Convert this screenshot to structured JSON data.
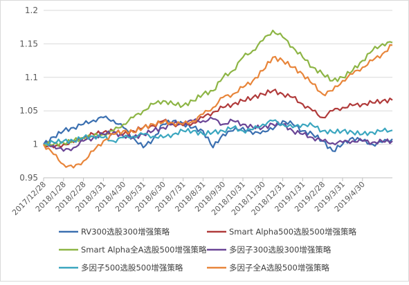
{
  "chart_data": {
    "type": "line",
    "title": "",
    "xlabel": "",
    "ylabel": "",
    "ylim": [
      0.95,
      1.2
    ],
    "y_ticks": [
      "0.95",
      "1",
      "1.05",
      "1.1",
      "1.15",
      "1.2"
    ],
    "x_tick_labels": [
      "2017/12/28",
      "2018/1/28",
      "2018/2/28",
      "2018/3/31",
      "2018/4/30",
      "2018/5/31",
      "2018/6/30",
      "2018/7/31",
      "2018/8/31",
      "2018/9/30",
      "2018/10/31",
      "2018/11/30",
      "2018/12/31",
      "2019/1/31",
      "2019/2/28",
      "2019/3/31",
      "2019/4/30"
    ],
    "grid": "horizontal",
    "legend_position": "bottom",
    "x_points": 17.5,
    "series": [
      {
        "name": "RV300选股300增强策略",
        "color": "#3a6fb0",
        "values": [
          1.0,
          1.011,
          1.02,
          1.025,
          1.03,
          1.036,
          1.04,
          1.036,
          1.025,
          1.01,
          0.995,
          1.008,
          1.03,
          1.035,
          1.03,
          1.025,
          1.02,
          0.995,
          1.015,
          1.02,
          1.025,
          1.015,
          1.02,
          1.022,
          1.035,
          1.03,
          1.02,
          1.015,
          1.005,
          0.99,
          1.0,
          1.01,
          1.005,
          1.0,
          1.003,
          1.008
        ]
      },
      {
        "name": "Smart Alpha500选股500增强策略",
        "color": "#b03a3a",
        "values": [
          1.0,
          0.995,
          1.0,
          1.003,
          1.01,
          1.015,
          1.018,
          1.02,
          1.015,
          1.02,
          1.025,
          1.028,
          1.035,
          1.03,
          1.028,
          1.032,
          1.04,
          1.048,
          1.055,
          1.06,
          1.065,
          1.07,
          1.075,
          1.08,
          1.075,
          1.07,
          1.06,
          1.05,
          1.04,
          1.05,
          1.055,
          1.058,
          1.06,
          1.062,
          1.065,
          1.066
        ]
      },
      {
        "name": "Smart Alpha全A选股500增强策略",
        "color": "#8db545",
        "values": [
          1.0,
          1.0,
          1.002,
          1.005,
          1.01,
          1.012,
          1.015,
          1.02,
          1.03,
          1.04,
          1.05,
          1.06,
          1.065,
          1.06,
          1.058,
          1.065,
          1.075,
          1.08,
          1.1,
          1.11,
          1.13,
          1.14,
          1.155,
          1.17,
          1.16,
          1.145,
          1.13,
          1.115,
          1.105,
          1.095,
          1.1,
          1.11,
          1.125,
          1.14,
          1.15,
          1.152
        ]
      },
      {
        "name": "多因子300选股300增强策略",
        "color": "#6a4596",
        "values": [
          1.0,
          0.998,
          0.99,
          0.995,
          1.005,
          1.01,
          1.015,
          1.018,
          1.012,
          1.01,
          1.015,
          1.02,
          1.025,
          1.03,
          1.032,
          1.035,
          1.035,
          1.038,
          1.03,
          1.035,
          1.03,
          1.025,
          1.025,
          1.03,
          1.03,
          1.02,
          1.015,
          1.01,
          1.005,
          1.002,
          1.003,
          1.005,
          1.005,
          1.003,
          1.004,
          1.005
        ]
      },
      {
        "name": "多因子500选股500增强策略",
        "color": "#3aa6bf",
        "values": [
          1.0,
          1.003,
          1.005,
          1.005,
          1.01,
          1.012,
          1.01,
          1.005,
          1.01,
          1.012,
          1.015,
          1.012,
          1.01,
          1.015,
          1.02,
          1.02,
          1.015,
          1.018,
          1.02,
          1.025,
          1.02,
          1.022,
          1.03,
          1.035,
          1.03,
          1.025,
          1.03,
          1.028,
          1.02,
          1.018,
          1.02,
          1.018,
          1.015,
          1.018,
          1.02,
          1.021
        ]
      },
      {
        "name": "多因子全A选股500增强策略",
        "color": "#e8853a",
        "values": [
          1.0,
          0.985,
          0.97,
          0.965,
          0.975,
          0.99,
          1.005,
          1.015,
          1.02,
          1.018,
          1.025,
          1.03,
          1.033,
          1.032,
          1.03,
          1.035,
          1.045,
          1.055,
          1.07,
          1.075,
          1.085,
          1.095,
          1.11,
          1.13,
          1.125,
          1.115,
          1.105,
          1.09,
          1.075,
          1.08,
          1.095,
          1.105,
          1.115,
          1.125,
          1.135,
          1.148
        ]
      }
    ]
  }
}
